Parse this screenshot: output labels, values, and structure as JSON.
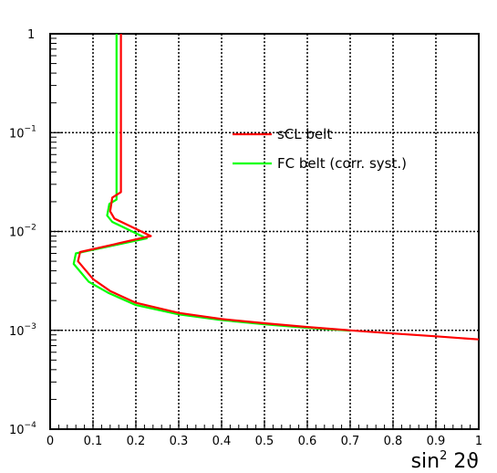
{
  "chart_data": {
    "type": "line",
    "title": "",
    "xlabel": {
      "base": "sin",
      "sup": "2",
      "rest": " 2ϑ"
    },
    "ylabel": "",
    "xlim": [
      0,
      1
    ],
    "ylim": [
      0.0001,
      1
    ],
    "yscale": "log",
    "grid": true,
    "legend_position": "upper-right",
    "x_ticks": [
      "0",
      "0.1",
      "0.2",
      "0.3",
      "0.4",
      "0.5",
      "0.6",
      "0.7",
      "0.8",
      "0.9",
      "1"
    ],
    "y_ticks": [
      {
        "value": 1,
        "base": "1",
        "exp": ""
      },
      {
        "value": 0.1,
        "base": "10",
        "exp": "−1"
      },
      {
        "value": 0.01,
        "base": "10",
        "exp": "−2"
      },
      {
        "value": 0.001,
        "base": "10",
        "exp": "−3"
      },
      {
        "value": 0.0001,
        "base": "10",
        "exp": "−4"
      }
    ],
    "series": [
      {
        "name": "sCL belt",
        "color": "#ff0000",
        "points": [
          [
            0.165,
            1
          ],
          [
            0.165,
            0.1
          ],
          [
            0.165,
            0.025
          ],
          [
            0.145,
            0.022
          ],
          [
            0.14,
            0.016
          ],
          [
            0.15,
            0.0135
          ],
          [
            0.235,
            0.009
          ],
          [
            0.07,
            0.0062
          ],
          [
            0.065,
            0.005
          ],
          [
            0.1,
            0.0033
          ],
          [
            0.14,
            0.0025
          ],
          [
            0.2,
            0.0019
          ],
          [
            0.3,
            0.0015
          ],
          [
            0.4,
            0.0013
          ],
          [
            0.5,
            0.00118
          ],
          [
            0.6,
            0.00108
          ],
          [
            0.7,
            0.001
          ],
          [
            0.8,
            0.00093
          ],
          [
            0.9,
            0.00087
          ],
          [
            1.0,
            0.00081
          ]
        ]
      },
      {
        "name": "FC belt (corr. syst.)",
        "color": "#00ff00",
        "points": [
          [
            0.155,
            1
          ],
          [
            0.155,
            0.1
          ],
          [
            0.155,
            0.021
          ],
          [
            0.138,
            0.019
          ],
          [
            0.133,
            0.0145
          ],
          [
            0.145,
            0.0125
          ],
          [
            0.225,
            0.0085
          ],
          [
            0.06,
            0.006
          ],
          [
            0.055,
            0.0047
          ],
          [
            0.09,
            0.0031
          ],
          [
            0.135,
            0.0024
          ],
          [
            0.2,
            0.0018
          ],
          [
            0.3,
            0.00145
          ],
          [
            0.4,
            0.00127
          ],
          [
            0.5,
            0.00115
          ],
          [
            0.6,
            0.00106
          ],
          [
            0.7,
            0.00099
          ]
        ]
      }
    ]
  }
}
